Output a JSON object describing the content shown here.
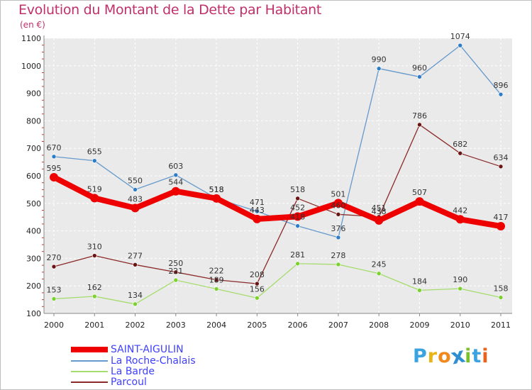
{
  "title": "Evolution du Montant de la Dette par Habitant",
  "subtitle": "(en €)",
  "brand": {
    "text": "Proxiti",
    "letter_colors": [
      "#3aa3e0",
      "#e8b416",
      "#f08a1d",
      "#2f8fd0",
      "#7bbf2a",
      "#3aa3e0",
      "#e8641d"
    ]
  },
  "chart_data": {
    "type": "line",
    "title": "Evolution du Montant de la Dette par Habitant",
    "subtitle": "(en €)",
    "xlabel": "",
    "ylabel": "",
    "x": [
      "2000",
      "2001",
      "2002",
      "2003",
      "2004",
      "2005",
      "2006",
      "2007",
      "2008",
      "2009",
      "2010",
      "2011"
    ],
    "ylim": [
      100,
      1100
    ],
    "yticks": [
      "100",
      "200",
      "300",
      "400",
      "500",
      "600",
      "700",
      "800",
      "900",
      "1000",
      "1100"
    ],
    "grid": true,
    "legend_position": "bottom-left",
    "series": [
      {
        "name": "SAINT-AIGULIN",
        "color": "#ee0000",
        "emphasis": "thick",
        "values": [
          595,
          519,
          483,
          544,
          518,
          443,
          452,
          501,
          438,
          507,
          442,
          417
        ],
        "labels": [
          "595",
          "519",
          "483",
          "544",
          "518",
          "443",
          "452",
          "501",
          "438",
          "507",
          "442",
          "417"
        ]
      },
      {
        "name": "La Roche-Chalais",
        "color": "#6699cc",
        "point_color": "#2d7cc8",
        "emphasis": "thin",
        "values": [
          670,
          655,
          550,
          603,
          518,
          471,
          418,
          376,
          990,
          960,
          1074,
          896
        ],
        "labels": [
          "670",
          "655",
          "550",
          "603",
          "518",
          "471",
          "418",
          "376",
          "990",
          "960",
          "1074",
          "896"
        ]
      },
      {
        "name": "La Barde",
        "color": "#a6dc6e",
        "point_color": "#7cd030",
        "emphasis": "thin",
        "values": [
          153,
          162,
          134,
          221,
          189,
          156,
          281,
          278,
          245,
          184,
          190,
          158
        ],
        "labels": [
          "153",
          "162",
          "134",
          "221",
          "189",
          "156",
          "281",
          "278",
          "245",
          "184",
          "190",
          "158"
        ]
      },
      {
        "name": "Parcoul",
        "color": "#8b2a2a",
        "point_color": "#6b1414",
        "emphasis": "thin",
        "values": [
          270,
          310,
          277,
          250,
          222,
          208,
          518,
          460,
          451,
          786,
          682,
          634
        ],
        "labels": [
          "270",
          "310",
          "277",
          "250",
          "222",
          "208",
          "518",
          "460",
          "451",
          "786",
          "682",
          "634"
        ]
      }
    ]
  }
}
